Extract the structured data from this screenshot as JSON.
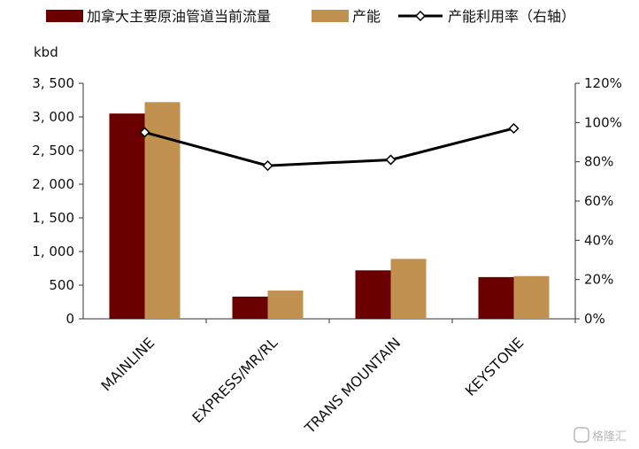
{
  "chart_data": {
    "type": "bar",
    "categories": [
      "MAINLINE",
      "EXPRESS/MR/RL",
      "TRANS MOUNTAIN",
      "KEYSTONE"
    ],
    "series": [
      {
        "name": "加拿大主要原油管道当前流量",
        "kind": "bar",
        "axis": "left",
        "color": "#6b0000",
        "values": [
          3050,
          330,
          720,
          620
        ]
      },
      {
        "name": "产能",
        "kind": "bar",
        "axis": "left",
        "color": "#c0914f",
        "values": [
          3220,
          420,
          890,
          635
        ]
      },
      {
        "name": "产能利用率（右轴）",
        "kind": "line",
        "axis": "right",
        "color": "#000000",
        "values": [
          95,
          78,
          81,
          97
        ]
      }
    ],
    "y_left": {
      "unit": "kbd",
      "range": [
        0,
        3500
      ],
      "ticks": [
        "0",
        "500",
        "1, 000",
        "1, 500",
        "2, 000",
        "2, 500",
        "3, 000",
        "3, 500"
      ]
    },
    "y_right": {
      "range": [
        0,
        120
      ],
      "ticks": [
        "0%",
        "20%",
        "40%",
        "60%",
        "80%",
        "100%",
        "120%"
      ]
    },
    "grid": false,
    "legend_position": "top"
  },
  "watermark": "格隆汇"
}
